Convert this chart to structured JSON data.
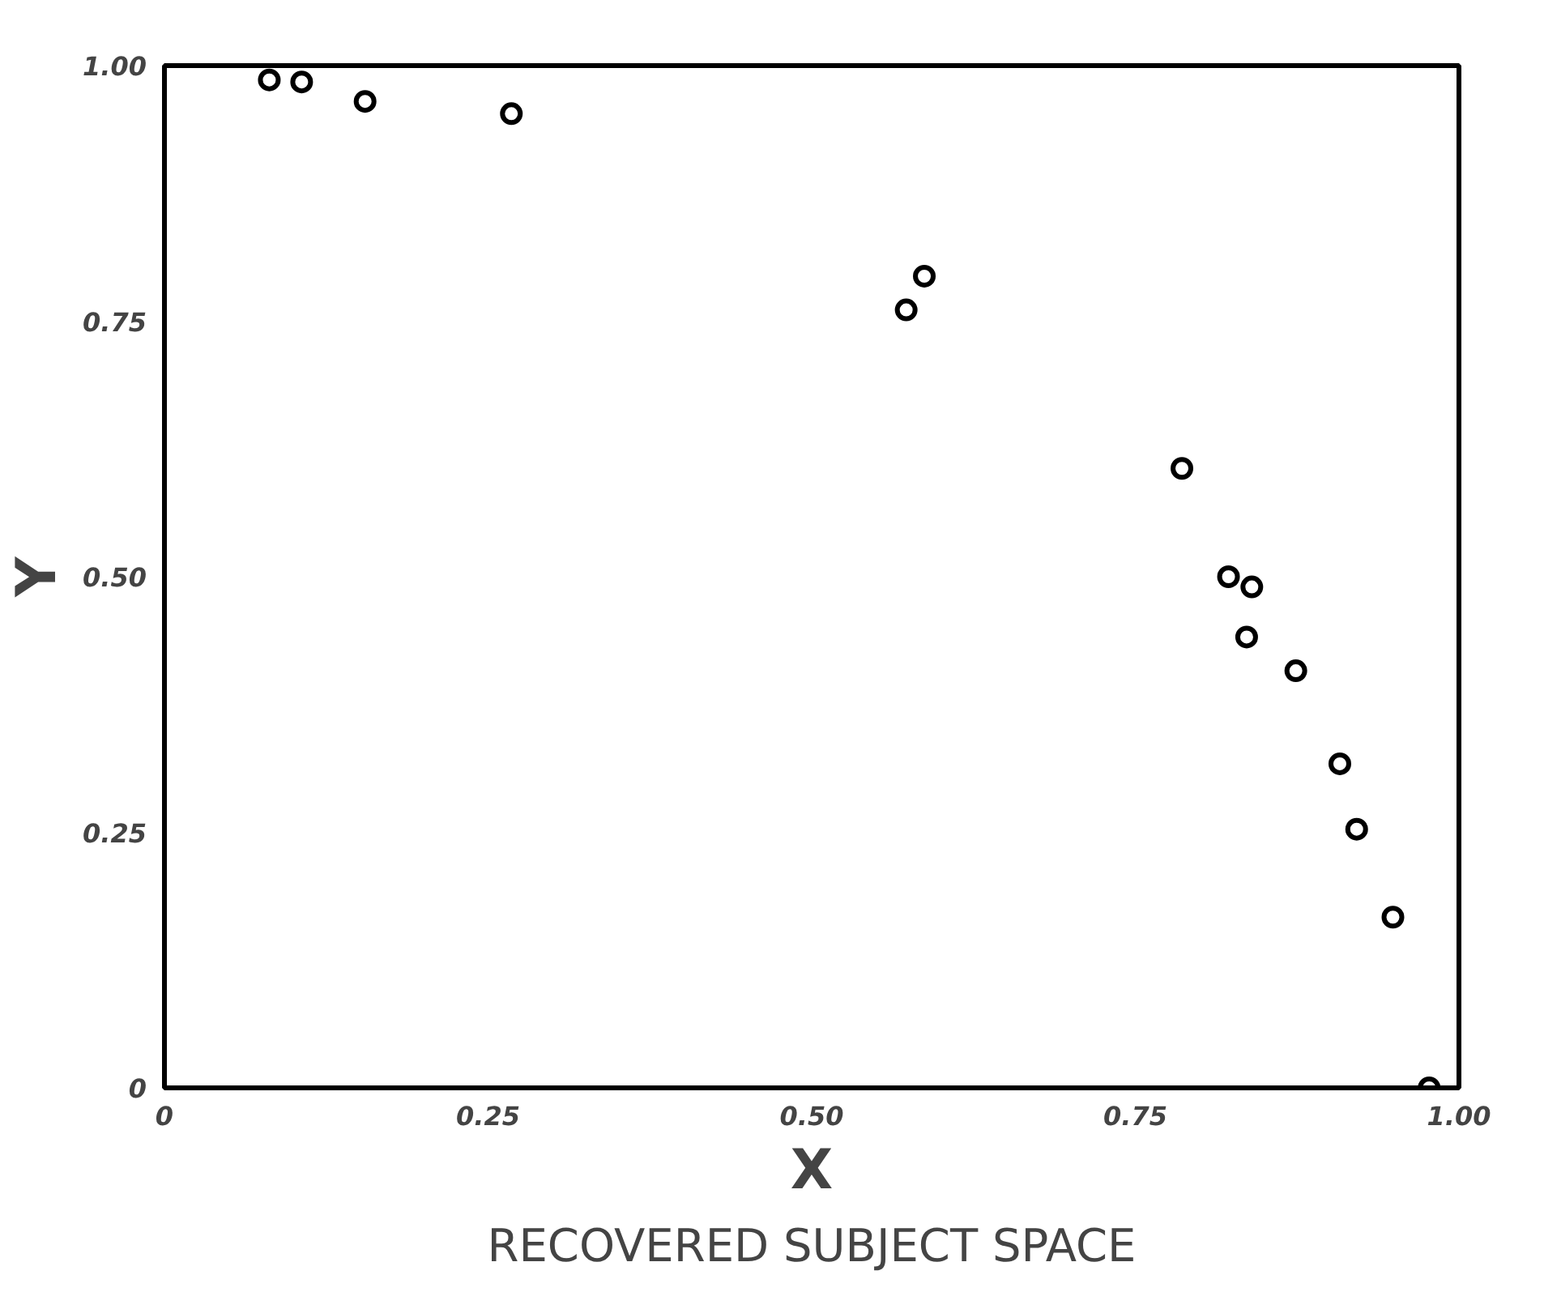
{
  "chart_data": {
    "type": "scatter",
    "title": "RECOVERED SUBJECT SPACE",
    "xlabel": "X",
    "ylabel": "Y",
    "x": [
      0.081,
      0.106,
      0.155,
      0.268,
      0.573,
      0.587,
      0.786,
      0.822,
      0.84,
      0.836,
      0.874,
      0.908,
      0.921,
      0.949,
      0.977
    ],
    "series": [
      {
        "color": "#000000",
        "values": [
          0.986,
          0.984,
          0.965,
          0.953,
          0.761,
          0.794,
          0.606,
          0.5,
          0.49,
          0.441,
          0.408,
          0.317,
          0.253,
          0.167,
          0.0
        ]
      }
    ],
    "xlim": [
      0,
      1
    ],
    "ylim": [
      0,
      1
    ],
    "xticks": [
      0,
      0.25,
      {
        "value": 0.5,
        "label": "0.50"
      },
      {
        "value": 0.75,
        "label": "0.75"
      },
      {
        "value": 1,
        "label": "1.00"
      }
    ],
    "yticks": [
      0,
      0.25,
      {
        "value": 0.5,
        "label": "0.50"
      },
      {
        "value": 0.75,
        "label": "0.75"
      },
      {
        "value": 1,
        "label": "1.00"
      }
    ],
    "grid": false,
    "marker": "circle"
  }
}
